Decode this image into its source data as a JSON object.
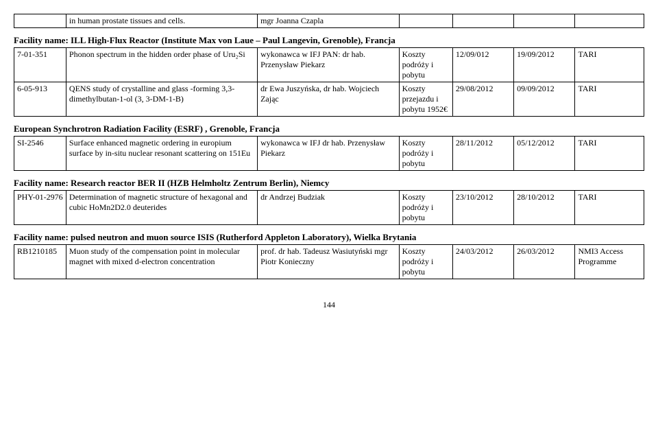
{
  "topRow": {
    "desc": "in human prostate tissues and cells.",
    "person": "mgr Joanna Czapla"
  },
  "sections": [
    {
      "title": "Facility name: ILL High-Flux Reactor (Institute Max von Laue – Paul Langevin, Grenoble), Francja",
      "rows": [
        {
          "id": "7-01-351",
          "desc": "Phonon spectrum in the hidden order phase of Uru₂Si",
          "person": "wykonawca w IFJ PAN: dr hab. Przenysław Piekarz",
          "cost": "Koszty podróży i pobytu",
          "d1": "12/09/012",
          "d2": "19/09/2012",
          "src": "TARI"
        },
        {
          "id": "6-05-913",
          "desc": "QENS study of crystalline and glass -forming 3,3-dimethylbutan-1-ol (3, 3-DM-1-B)",
          "person": "dr Ewa Juszyńska, dr hab. Wojciech Zając",
          "cost": "Koszty przejazdu i pobytu 1952€",
          "d1": "29/08/2012",
          "d2": "09/09/2012",
          "src": "TARI"
        }
      ]
    },
    {
      "title": "European Synchrotron Radiation Facility (ESRF) , Grenoble, Francja",
      "rows": [
        {
          "id": "SI-2546",
          "desc": "Surface enhanced magnetic ordering in europium surface by in-situ nuclear resonant scattering on 151Eu",
          "person": "wykonawca w IFJ dr hab. Przenysław Piekarz",
          "cost": "Koszty podróży i pobytu",
          "d1": "28/11/2012",
          "d2": "05/12/2012",
          "src": "TARI"
        }
      ]
    },
    {
      "title": "Facility name: Research reactor BER II (HZB Helmholtz Zentrum Berlin), Niemcy",
      "rows": [
        {
          "id": "PHY-01-2976",
          "desc": "Determination of magnetic structure of hexagonal and cubic HoMn2D2.0 deuterides",
          "person": "dr Andrzej Budziak",
          "cost": "Koszty podróży i pobytu",
          "d1": "23/10/2012",
          "d2": "28/10/2012",
          "src": "TARI"
        }
      ]
    },
    {
      "title": "Facility name: pulsed neutron and muon source ISIS  (Rutherford Appleton Laboratory), Wielka Brytania",
      "rows": [
        {
          "id": "RB1210185",
          "desc": "Muon study of the compensation point in molecular magnet with mixed d-electron concentration",
          "person": "prof. dr hab. Tadeusz Wasiutyński mgr Piotr Konieczny",
          "cost": "Koszty podróży i pobytu",
          "d1": "24/03/2012",
          "d2": "26/03/2012",
          "src": "NMI3 Access Programme"
        }
      ]
    }
  ],
  "pageNumber": "144"
}
